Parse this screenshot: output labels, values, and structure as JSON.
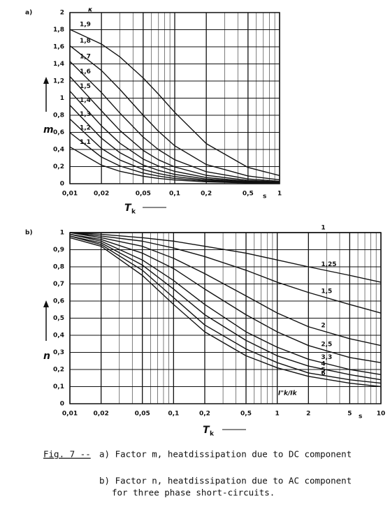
{
  "chart_data": [
    {
      "type": "line",
      "panel": "a)",
      "y_label": "m",
      "x_label": "T",
      "x_label_subscript": "k",
      "x_unit": "s",
      "curve_label_title": "κ",
      "xscale": "log",
      "xlim": [
        0.01,
        1
      ],
      "ylim": [
        0,
        2
      ],
      "grid": true,
      "xticks": [
        {
          "value": 0.01,
          "label": "0,01"
        },
        {
          "value": 0.02,
          "label": "0,02"
        },
        {
          "value": 0.05,
          "label": "0,05"
        },
        {
          "value": 0.1,
          "label": "0,1"
        },
        {
          "value": 0.2,
          "label": "0,2"
        },
        {
          "value": 0.5,
          "label": "0,5"
        },
        1
      ],
      "xgrid_minor": [
        0.03,
        0.04,
        0.06,
        0.07,
        0.08,
        0.09,
        0.3,
        0.4,
        0.6,
        0.7,
        0.8,
        0.9
      ],
      "yticks": [
        0,
        {
          "value": 0.2,
          "label": "0,2"
        },
        {
          "value": 0.4,
          "label": "0,4"
        },
        {
          "value": 0.6,
          "label": "0,6"
        },
        {
          "value": 0.8,
          "label": "0,8"
        },
        1,
        {
          "value": 1.2,
          "label": "1,2"
        },
        {
          "value": 1.4,
          "label": "1,4"
        },
        {
          "value": 1.6,
          "label": "1,6"
        },
        {
          "value": 1.8,
          "label": "1,8"
        },
        2
      ],
      "x": [
        0.01,
        0.02,
        0.03,
        0.05,
        0.07,
        0.1,
        0.2,
        0.5,
        1
      ],
      "series": [
        {
          "name": "1,9",
          "color": "#111",
          "values": [
            1.803,
            1.632,
            1.482,
            1.236,
            1.046,
            0.834,
            0.468,
            0.19,
            0.095
          ]
        },
        {
          "name": "1,8",
          "color": "#111",
          "values": [
            1.613,
            1.323,
            1.102,
            0.8,
            0.612,
            0.443,
            0.224,
            0.09,
            0.045
          ]
        },
        {
          "name": "1,7",
          "color": "#111",
          "values": [
            1.43,
            1.065,
            0.825,
            0.545,
            0.398,
            0.28,
            0.14,
            0.056,
            0.028
          ]
        },
        {
          "name": "1,6",
          "color": "#111",
          "values": [
            1.253,
            0.852,
            0.622,
            0.389,
            0.279,
            0.196,
            0.098,
            0.039,
            0.02
          ]
        },
        {
          "name": "1,5",
          "color": "#111",
          "values": [
            1.082,
            0.676,
            0.473,
            0.288,
            0.206,
            0.144,
            0.072,
            0.029,
            0.014
          ]
        },
        {
          "name": "1,4",
          "color": "#111",
          "values": [
            0.917,
            0.532,
            0.362,
            0.218,
            0.156,
            0.109,
            0.055,
            0.022,
            0.011
          ]
        },
        {
          "name": "1,3",
          "color": "#111",
          "values": [
            0.756,
            0.412,
            0.277,
            0.166,
            0.119,
            0.083,
            0.042,
            0.017,
            0.008
          ]
        },
        {
          "name": "1,2",
          "color": "#111",
          "values": [
            0.597,
            0.311,
            0.207,
            0.124,
            0.089,
            0.062,
            0.031,
            0.012,
            0.006
          ]
        },
        {
          "name": "1,1",
          "color": "#111",
          "values": [
            0.43,
            0.217,
            0.145,
            0.087,
            0.062,
            0.043,
            0.022,
            0.009,
            0.004
          ]
        }
      ]
    },
    {
      "type": "line",
      "panel": "b)",
      "y_label": "n",
      "x_label": "T",
      "x_label_subscript": "k",
      "x_unit": "s",
      "curve_label_title": "I\"k/Ik",
      "xscale": "log",
      "xlim": [
        0.01,
        10
      ],
      "ylim": [
        0,
        1
      ],
      "grid": true,
      "xticks": [
        {
          "value": 0.01,
          "label": "0,01"
        },
        {
          "value": 0.02,
          "label": "0,02"
        },
        {
          "value": 0.05,
          "label": "0,05"
        },
        {
          "value": 0.1,
          "label": "0,1"
        },
        {
          "value": 0.2,
          "label": "0,2"
        },
        {
          "value": 0.5,
          "label": "0,5"
        },
        1,
        2,
        5,
        10
      ],
      "xgrid_minor": [
        0.03,
        0.04,
        0.06,
        0.07,
        0.08,
        0.09,
        0.3,
        0.4,
        0.6,
        0.7,
        0.8,
        0.9,
        3,
        4,
        6,
        7,
        8,
        9
      ],
      "yticks": [
        0,
        {
          "value": 0.1,
          "label": "0,1"
        },
        {
          "value": 0.2,
          "label": "0,2"
        },
        {
          "value": 0.3,
          "label": "0,3"
        },
        {
          "value": 0.4,
          "label": "0,4"
        },
        {
          "value": 0.5,
          "label": "0,5"
        },
        {
          "value": 0.6,
          "label": "0,6"
        },
        {
          "value": 0.7,
          "label": "0,7"
        },
        {
          "value": 0.8,
          "label": "0,8"
        },
        {
          "value": 0.9,
          "label": "0,9"
        },
        1
      ],
      "x": [
        0.01,
        0.02,
        0.05,
        0.1,
        0.2,
        0.5,
        1,
        2,
        5,
        10
      ],
      "series": [
        {
          "name": "1",
          "color": "#111",
          "values": [
            1,
            1,
            1,
            1,
            1,
            1,
            1,
            1,
            1,
            1
          ]
        },
        {
          "name": "1,25",
          "color": "#111",
          "values": [
            1,
            0.99,
            0.97,
            0.95,
            0.92,
            0.88,
            0.84,
            0.8,
            0.75,
            0.71
          ]
        },
        {
          "name": "1,5",
          "color": "#111",
          "values": [
            1,
            0.98,
            0.95,
            0.91,
            0.86,
            0.78,
            0.71,
            0.65,
            0.58,
            0.53
          ]
        },
        {
          "name": "2",
          "color": "#111",
          "values": [
            1,
            0.97,
            0.92,
            0.85,
            0.76,
            0.63,
            0.53,
            0.45,
            0.38,
            0.34
          ]
        },
        {
          "name": "2,5",
          "color": "#111",
          "values": [
            0.99,
            0.96,
            0.88,
            0.79,
            0.67,
            0.52,
            0.42,
            0.34,
            0.27,
            0.24
          ]
        },
        {
          "name": "3,3",
          "color": "#111",
          "values": [
            0.99,
            0.95,
            0.84,
            0.72,
            0.58,
            0.42,
            0.33,
            0.26,
            0.2,
            0.17
          ]
        },
        {
          "name": "4",
          "color": "#111",
          "values": [
            0.98,
            0.94,
            0.81,
            0.67,
            0.52,
            0.37,
            0.28,
            0.22,
            0.17,
            0.14
          ]
        },
        {
          "name": "5",
          "color": "#111",
          "values": [
            0.98,
            0.93,
            0.78,
            0.62,
            0.46,
            0.32,
            0.24,
            0.18,
            0.14,
            0.12
          ]
        },
        {
          "name": "6",
          "color": "#111",
          "values": [
            0.97,
            0.92,
            0.75,
            0.58,
            0.42,
            0.28,
            0.21,
            0.16,
            0.12,
            0.1
          ]
        }
      ]
    }
  ],
  "caption": {
    "figure": "Fig. 7 --",
    "lines": [
      "a) Factor m, heatdissipation due to DC component",
      "b) Factor n, heatdissipation due to AC component",
      "for three phase short-circuits."
    ]
  }
}
